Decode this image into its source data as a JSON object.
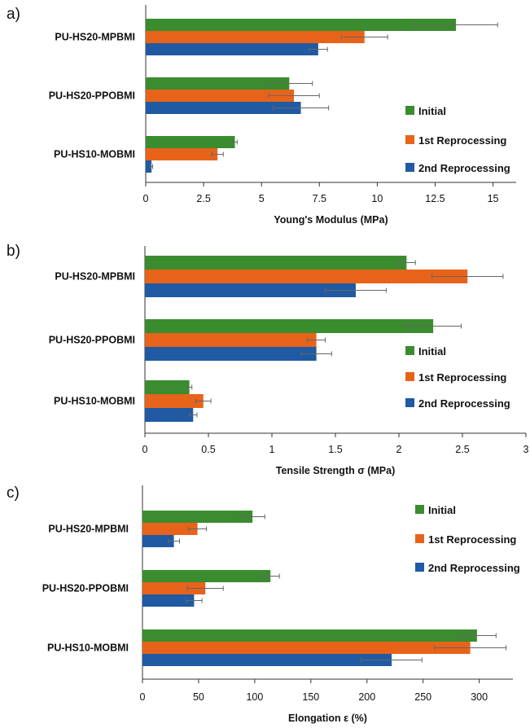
{
  "colors": {
    "initial": "#3a8c2f",
    "first": "#e8631a",
    "second": "#1f5aa3",
    "errorbar": "#666666",
    "axis": "#333333"
  },
  "chart_data": [
    {
      "panel": "a)",
      "type": "bar",
      "orientation": "horizontal",
      "categories": [
        "PU-HS20-MPBMI",
        "PU-HS20-PPOBMI",
        "PU-HS10-MOBMI"
      ],
      "series": [
        {
          "name": "Initial",
          "values": [
            13.4,
            6.2,
            3.85
          ],
          "errors": [
            1.8,
            1.0,
            0.1
          ]
        },
        {
          "name": "1st Reprocessing",
          "values": [
            9.45,
            6.4,
            3.1
          ],
          "errors": [
            1.0,
            1.1,
            0.25
          ]
        },
        {
          "name": "2nd Reprocessing",
          "values": [
            7.45,
            6.7,
            0.25
          ],
          "errors": [
            0.4,
            1.2,
            0.05
          ]
        }
      ],
      "xlabel": "Young's Modulus (MPa)",
      "xlim": [
        0,
        16
      ],
      "xticks": [
        "0",
        "2.5",
        "5",
        "7.5",
        "10",
        "12.5",
        "15"
      ],
      "legend": "right"
    },
    {
      "panel": "b)",
      "type": "bar",
      "orientation": "horizontal",
      "categories": [
        "PU-HS20-MPBMI",
        "PU-HS20-PPOBMI",
        "PU-HS10-MOBMI"
      ],
      "series": [
        {
          "name": "Initial",
          "values": [
            2.06,
            2.27,
            0.35
          ],
          "errors": [
            0.07,
            0.22,
            0.02
          ]
        },
        {
          "name": "1st Reprocessing",
          "values": [
            2.54,
            1.35,
            0.46
          ],
          "errors": [
            0.28,
            0.07,
            0.06
          ]
        },
        {
          "name": "2nd Reprocessing",
          "values": [
            1.66,
            1.35,
            0.38
          ],
          "errors": [
            0.24,
            0.12,
            0.03
          ]
        }
      ],
      "xlabel": "Tensile Strength σ (MPa)",
      "xlim": [
        0,
        3
      ],
      "xticks": [
        "0",
        "0.5",
        "1",
        "1.5",
        "2",
        "2.5",
        "3"
      ],
      "legend": "right"
    },
    {
      "panel": "c)",
      "type": "bar",
      "orientation": "horizontal",
      "categories": [
        "PU-HS20-MPBMI",
        "PU-HS20-PPOBMI",
        "PU-HS10-MOBMI"
      ],
      "series": [
        {
          "name": "Initial",
          "values": [
            98,
            114,
            298
          ],
          "errors": [
            11,
            8,
            17
          ]
        },
        {
          "name": "1st Reprocessing",
          "values": [
            49,
            56,
            292
          ],
          "errors": [
            8,
            16,
            32
          ]
        },
        {
          "name": "2nd Reprocessing",
          "values": [
            28,
            46,
            222
          ],
          "errors": [
            5,
            7,
            27
          ]
        }
      ],
      "xlabel": "Elongation ε (%)",
      "xlim": [
        0,
        330
      ],
      "xticks": [
        "0",
        "50",
        "100",
        "150",
        "200",
        "250",
        "300"
      ],
      "legend": "top-right"
    }
  ]
}
